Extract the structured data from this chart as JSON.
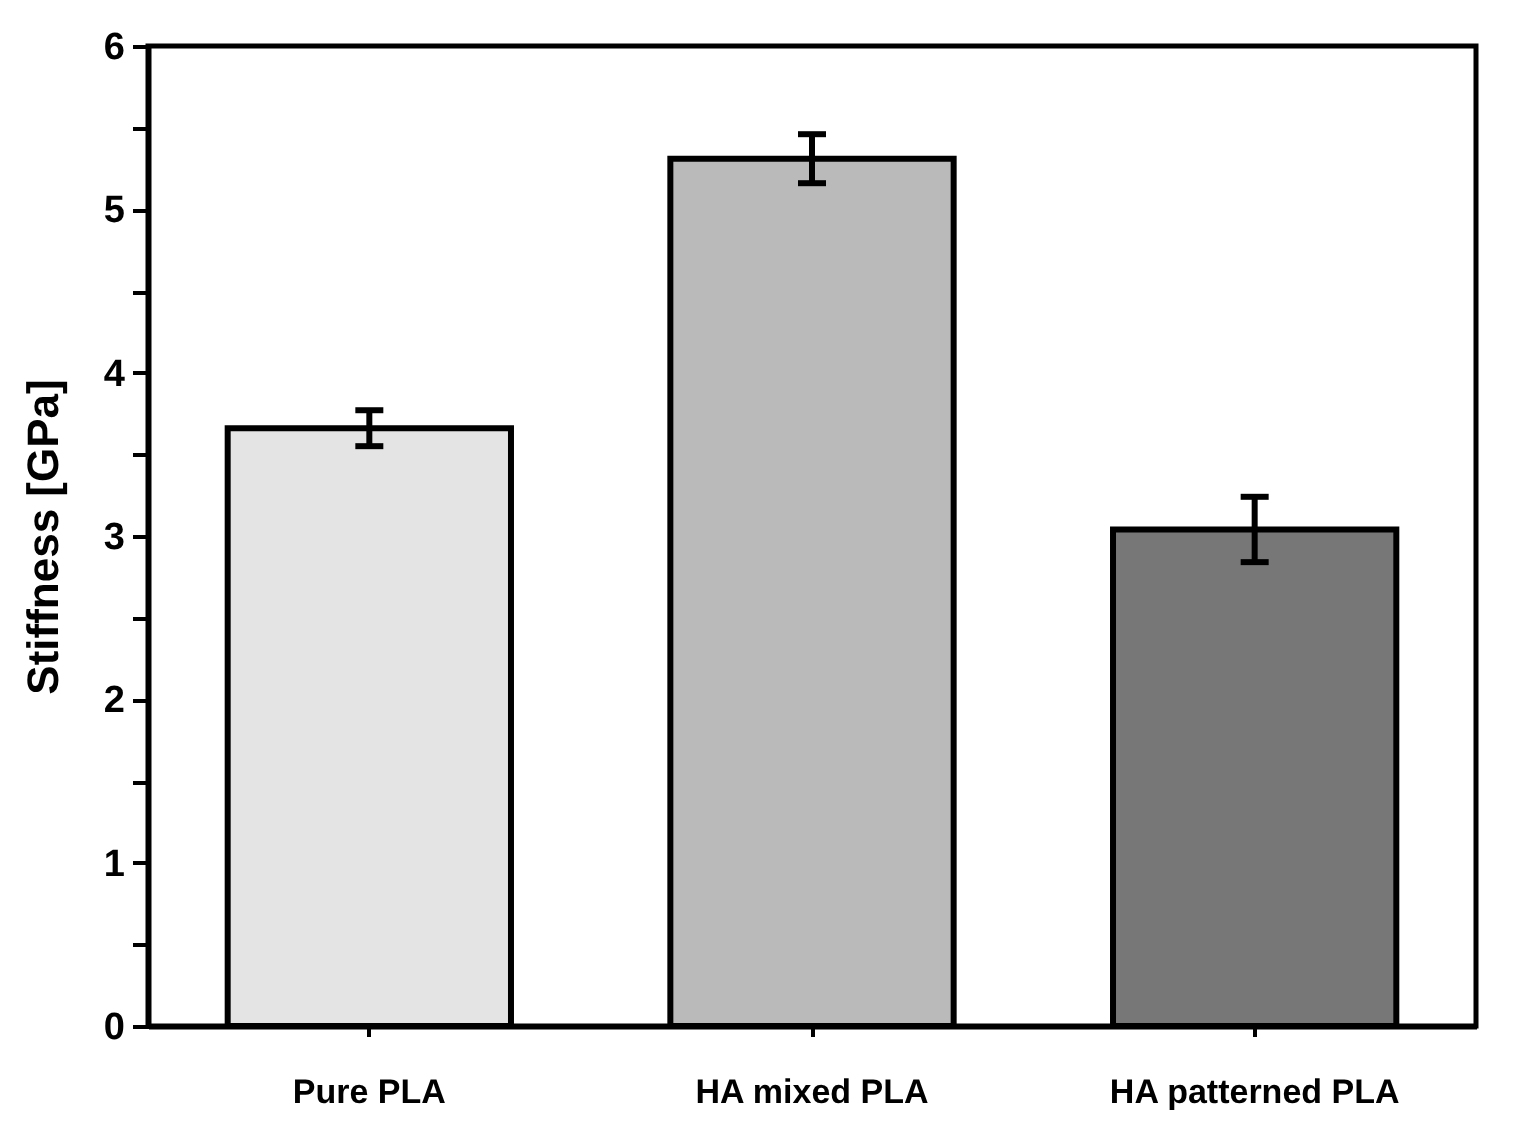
{
  "chart_data": {
    "type": "bar",
    "ylabel": "Stiffness [GPa]",
    "categories": [
      "Pure PLA",
      "HA mixed PLA",
      "HA patterned PLA"
    ],
    "values": [
      3.66,
      5.31,
      3.04
    ],
    "colors": [
      "#e4e4e4",
      "#bababa",
      "#777777"
    ],
    "errors": [
      0.11,
      0.15,
      0.2
    ],
    "ylim": [
      0,
      6
    ],
    "yticks": [
      0,
      {
        "value": 0.5,
        "label": null
      },
      1,
      {
        "value": 1.5,
        "label": null
      },
      2,
      {
        "value": 2.5,
        "label": null
      },
      3,
      {
        "value": 3.5,
        "label": null
      },
      4,
      {
        "value": 4.5,
        "label": null
      },
      5,
      {
        "value": 5.5,
        "label": null
      },
      6
    ],
    "grid": false
  }
}
